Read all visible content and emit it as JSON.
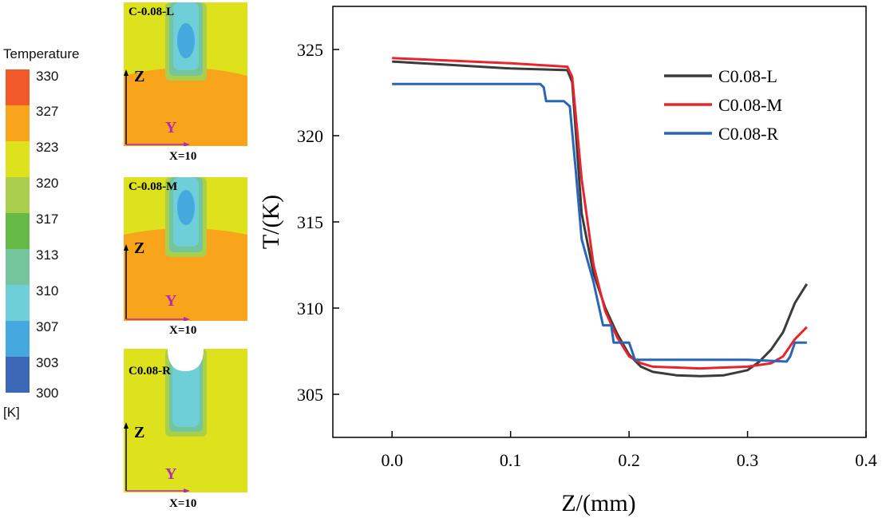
{
  "colorbar": {
    "title": "Temperature",
    "unit": "[K]",
    "ticks": [
      "330",
      "327",
      "323",
      "320",
      "317",
      "313",
      "310",
      "307",
      "303",
      "300"
    ],
    "colors": [
      "#f05a28",
      "#f8a51b",
      "#dde21c",
      "#a9cf4c",
      "#66bb47",
      "#74c59c",
      "#6ecfd9",
      "#45a9e0",
      "#3a68b7",
      "#36479c"
    ]
  },
  "panels": [
    {
      "label": "C-0.08-L",
      "z_axis": "Z",
      "y_axis": "Y",
      "x_caption": "X=10"
    },
    {
      "label": "C-0.08-M",
      "z_axis": "Z",
      "y_axis": "Y",
      "x_caption": "X=10"
    },
    {
      "label": "C0.08-R",
      "z_axis": "Z",
      "y_axis": "Y",
      "x_caption": "X=10"
    }
  ],
  "chart_data": {
    "type": "line",
    "title": "",
    "xlabel": "Z/(mm)",
    "ylabel": "T/(K)",
    "xlim": [
      -0.05,
      0.4
    ],
    "ylim": [
      302.5,
      327.5
    ],
    "xticks": [
      "0.0",
      "0.1",
      "0.2",
      "0.3",
      "0.4"
    ],
    "xtick_values": [
      0.0,
      0.1,
      0.2,
      0.3,
      0.4
    ],
    "yticks": [
      "305",
      "310",
      "315",
      "320",
      "325"
    ],
    "ytick_values": [
      305,
      310,
      315,
      320,
      325
    ],
    "legend_position": "top-right",
    "series": [
      {
        "name": "C0.08-L",
        "color": "#3b3b3b",
        "x": [
          0.0,
          0.05,
          0.1,
          0.148,
          0.152,
          0.16,
          0.17,
          0.18,
          0.19,
          0.2,
          0.21,
          0.22,
          0.24,
          0.26,
          0.28,
          0.3,
          0.31,
          0.32,
          0.33,
          0.34,
          0.35
        ],
        "y": [
          324.3,
          324.1,
          323.9,
          323.8,
          323.1,
          315.5,
          312.0,
          310.0,
          308.5,
          307.3,
          306.6,
          306.3,
          306.1,
          306.05,
          306.1,
          306.4,
          306.9,
          307.6,
          308.6,
          310.3,
          311.4
        ]
      },
      {
        "name": "C0.08-M",
        "color": "#e8252b",
        "x": [
          0.0,
          0.05,
          0.1,
          0.148,
          0.152,
          0.16,
          0.17,
          0.18,
          0.19,
          0.2,
          0.21,
          0.22,
          0.24,
          0.26,
          0.28,
          0.3,
          0.32,
          0.33,
          0.34,
          0.35
        ],
        "y": [
          324.5,
          324.35,
          324.2,
          324.0,
          323.4,
          317.5,
          312.5,
          309.8,
          308.3,
          307.2,
          306.8,
          306.6,
          306.55,
          306.5,
          306.55,
          306.6,
          306.8,
          307.2,
          308.2,
          308.9
        ]
      },
      {
        "name": "C0.08-R",
        "color": "#2766b8",
        "x": [
          0.0,
          0.05,
          0.1,
          0.125,
          0.128,
          0.13,
          0.14,
          0.145,
          0.15,
          0.155,
          0.16,
          0.17,
          0.178,
          0.18,
          0.185,
          0.187,
          0.19,
          0.2,
          0.202,
          0.205,
          0.21,
          0.25,
          0.3,
          0.333,
          0.336,
          0.34,
          0.35
        ],
        "y": [
          323.0,
          323.0,
          323.0,
          323.0,
          322.8,
          322.0,
          322.0,
          322.0,
          321.7,
          318.0,
          314.0,
          311.5,
          309.0,
          309.0,
          309.0,
          308.0,
          308.0,
          308.0,
          307.6,
          307.0,
          307.0,
          307.0,
          307.0,
          306.9,
          307.2,
          308.0,
          308.0
        ]
      }
    ]
  }
}
